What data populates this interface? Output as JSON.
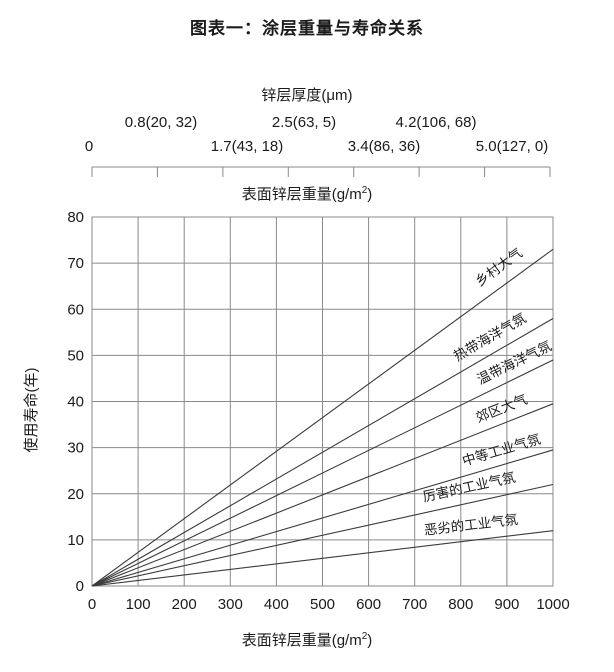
{
  "title": "图表一：涂层重量与寿命关系",
  "top_scale": {
    "title": "锌层厚度(μm)",
    "row_upper": [
      {
        "text": "0.8(20, 32)",
        "x": 161
      },
      {
        "text": "2.5(63, 5)",
        "x": 304
      },
      {
        "text": "4.2(106, 68)",
        "x": 436
      }
    ],
    "row_lower": [
      {
        "text": "0",
        "x": 89
      },
      {
        "text": "1.7(43, 18)",
        "x": 247
      },
      {
        "text": "3.4(86, 36)",
        "x": 384
      },
      {
        "text": "5.0(127, 0)",
        "x": 512
      }
    ]
  },
  "axes": {
    "weight_label_text": "表面锌层重量(g/m",
    "weight_label_sup": "2",
    "weight_label_close": ")",
    "y_label": "使用寿命(年)"
  },
  "colors": {
    "text": "#1b1b1b",
    "grid": "#8a8a8a",
    "series_line": "#3b3b3b"
  },
  "chart_data": {
    "type": "line",
    "title": "图表一：涂层重量与寿命关系",
    "xlabel": "表面锌层重量(g/m²)",
    "ylabel": "使用寿命(年)",
    "top_axis_label": "锌层厚度(μm)",
    "top_scale_labels": [
      "0",
      "0.8(20, 32)",
      "1.7(43, 18)",
      "2.5(63, 5)",
      "3.4(86, 36)",
      "4.2(106, 68)",
      "5.0(127, 0)"
    ],
    "xlim": [
      0,
      1000
    ],
    "ylim": [
      0,
      80
    ],
    "x_ticks": [
      0,
      100,
      200,
      300,
      400,
      500,
      600,
      700,
      800,
      900,
      1000
    ],
    "y_ticks": [
      0,
      10,
      20,
      30,
      40,
      50,
      60,
      70,
      80
    ],
    "grid": true,
    "legend_position": "labels-on-lines",
    "series": [
      {
        "name": "乡村大气",
        "x": [
          0,
          1000
        ],
        "y": [
          0,
          73
        ],
        "label_at_x": 905,
        "label_offset": 13
      },
      {
        "name": "热带海洋气氛",
        "x": [
          0,
          1000
        ],
        "y": [
          0,
          58
        ],
        "label_at_x": 880,
        "label_offset": 11
      },
      {
        "name": "温带海洋气氛",
        "x": [
          0,
          1000
        ],
        "y": [
          0,
          49
        ],
        "label_at_x": 930,
        "label_offset": 10
      },
      {
        "name": "郊区大气",
        "x": [
          0,
          1000
        ],
        "y": [
          0,
          39.5
        ],
        "label_at_x": 900,
        "label_offset": 10
      },
      {
        "name": "中等工业气氛",
        "x": [
          0,
          1000
        ],
        "y": [
          0,
          29.5
        ],
        "label_at_x": 897,
        "label_offset": 10
      },
      {
        "name": "厉害的工业气氛",
        "x": [
          0,
          1000
        ],
        "y": [
          0,
          22
        ],
        "label_at_x": 825,
        "label_offset": 11
      },
      {
        "name": "恶劣的工业气氛",
        "x": [
          0,
          1000
        ],
        "y": [
          0,
          12
        ],
        "label_at_x": 826,
        "label_offset": 11
      }
    ]
  }
}
